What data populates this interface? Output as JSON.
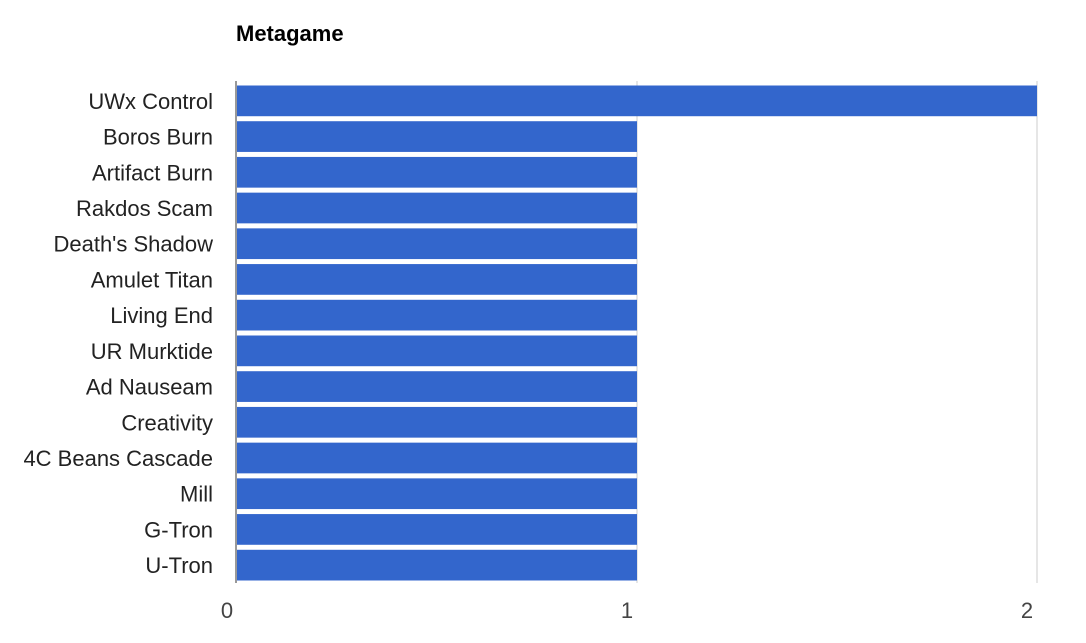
{
  "chart_data": {
    "type": "bar",
    "orientation": "horizontal",
    "title": "Metagame",
    "xlabel": "",
    "ylabel": "",
    "xlim": [
      0,
      2
    ],
    "x_ticks": [
      "0",
      "1",
      "2"
    ],
    "grid": true,
    "legend": "none",
    "bar_color": "#3366cc",
    "categories": [
      "UWx Control",
      "Boros Burn",
      "Artifact Burn",
      "Rakdos Scam",
      "Death's Shadow",
      "Amulet Titan",
      "Living End",
      "UR Murktide",
      "Ad Nauseam",
      "Creativity",
      "4C Beans Cascade",
      "Mill",
      "G-Tron",
      "U-Tron"
    ],
    "values": [
      2,
      1,
      1,
      1,
      1,
      1,
      1,
      1,
      1,
      1,
      1,
      1,
      1,
      1
    ]
  }
}
